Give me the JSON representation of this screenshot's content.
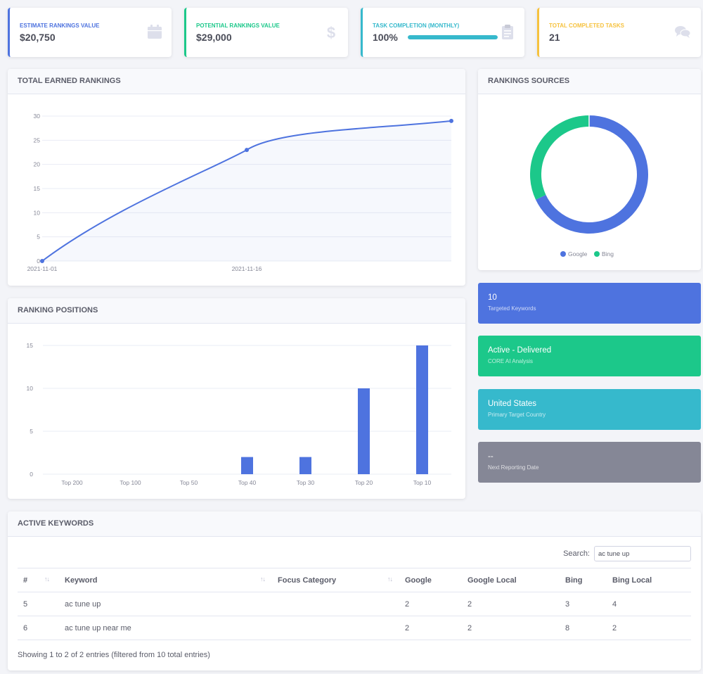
{
  "stats": [
    {
      "label": "Estimate Rankings Value",
      "value": "$20,750",
      "color": "#4e73df",
      "icon": "calendar-icon"
    },
    {
      "label": "Potential Rankings Value",
      "value": "$29,000",
      "color": "#1cc88a",
      "icon": "dollar-icon"
    },
    {
      "label": "Task Completion (Monthly)",
      "value": "100%",
      "color": "#36b9cc",
      "icon": "clipboard-icon",
      "progress": 1.0
    },
    {
      "label": "Total Completed Tasks",
      "value": "21",
      "color": "#f6c23e",
      "icon": "comments-icon"
    }
  ],
  "earned": {
    "title": "TOTAL EARNED RANKINGS",
    "chart_data": {
      "type": "line",
      "x": [
        "2021-11-01",
        "2021-11-16",
        ""
      ],
      "values": [
        0,
        23,
        29
      ],
      "x_tick_labels": [
        "2021-11-01",
        "2021-11-16"
      ],
      "y_ticks": [
        0,
        5,
        10,
        15,
        20,
        25,
        30
      ],
      "ylim": [
        0,
        30
      ],
      "color": "#4e73df",
      "grid": true
    }
  },
  "sources": {
    "title": "RANKINGS SOURCES",
    "chart_data": {
      "type": "pie",
      "donut": true,
      "labels": [
        "Google",
        "Bing"
      ],
      "values": [
        68,
        32
      ],
      "colors": [
        "#4e73df",
        "#1cc88a"
      ],
      "legend": "bottom"
    }
  },
  "positions": {
    "title": "RANKING POSITIONS",
    "chart_data": {
      "type": "bar",
      "categories": [
        "Top 200",
        "Top 100",
        "Top 50",
        "Top 40",
        "Top 30",
        "Top 20",
        "Top 10"
      ],
      "values": [
        0,
        0,
        0,
        2,
        2,
        10,
        15
      ],
      "y_ticks": [
        0,
        5,
        10,
        15
      ],
      "ylim": [
        0,
        15
      ],
      "color": "#4e73df",
      "grid": true
    }
  },
  "info_cards": [
    {
      "title": "10",
      "sub": "Targeted Keywords",
      "color": "#4e73df"
    },
    {
      "title": "Active - Delivered",
      "sub": "CORE AI Analysis",
      "color": "#1cc88a"
    },
    {
      "title": "United States",
      "sub": "Primary Target Country",
      "color": "#36b9cc"
    },
    {
      "title": "--",
      "sub": "Next Reporting Date",
      "color": "#858796"
    }
  ],
  "keywords": {
    "title": "ACTIVE KEYWORDS",
    "search_label": "Search:",
    "search_value": "ac tune up",
    "columns": [
      "#",
      "Keyword",
      "Focus Category",
      "Google",
      "Google Local",
      "Bing",
      "Bing Local"
    ],
    "rows": [
      [
        "5",
        "ac tune up",
        "",
        "2",
        "2",
        "3",
        "4"
      ],
      [
        "6",
        "ac tune up near me",
        "",
        "2",
        "2",
        "8",
        "2"
      ]
    ],
    "footer": "Showing 1 to 2 of 2 entries (filtered from 10 total entries)"
  }
}
